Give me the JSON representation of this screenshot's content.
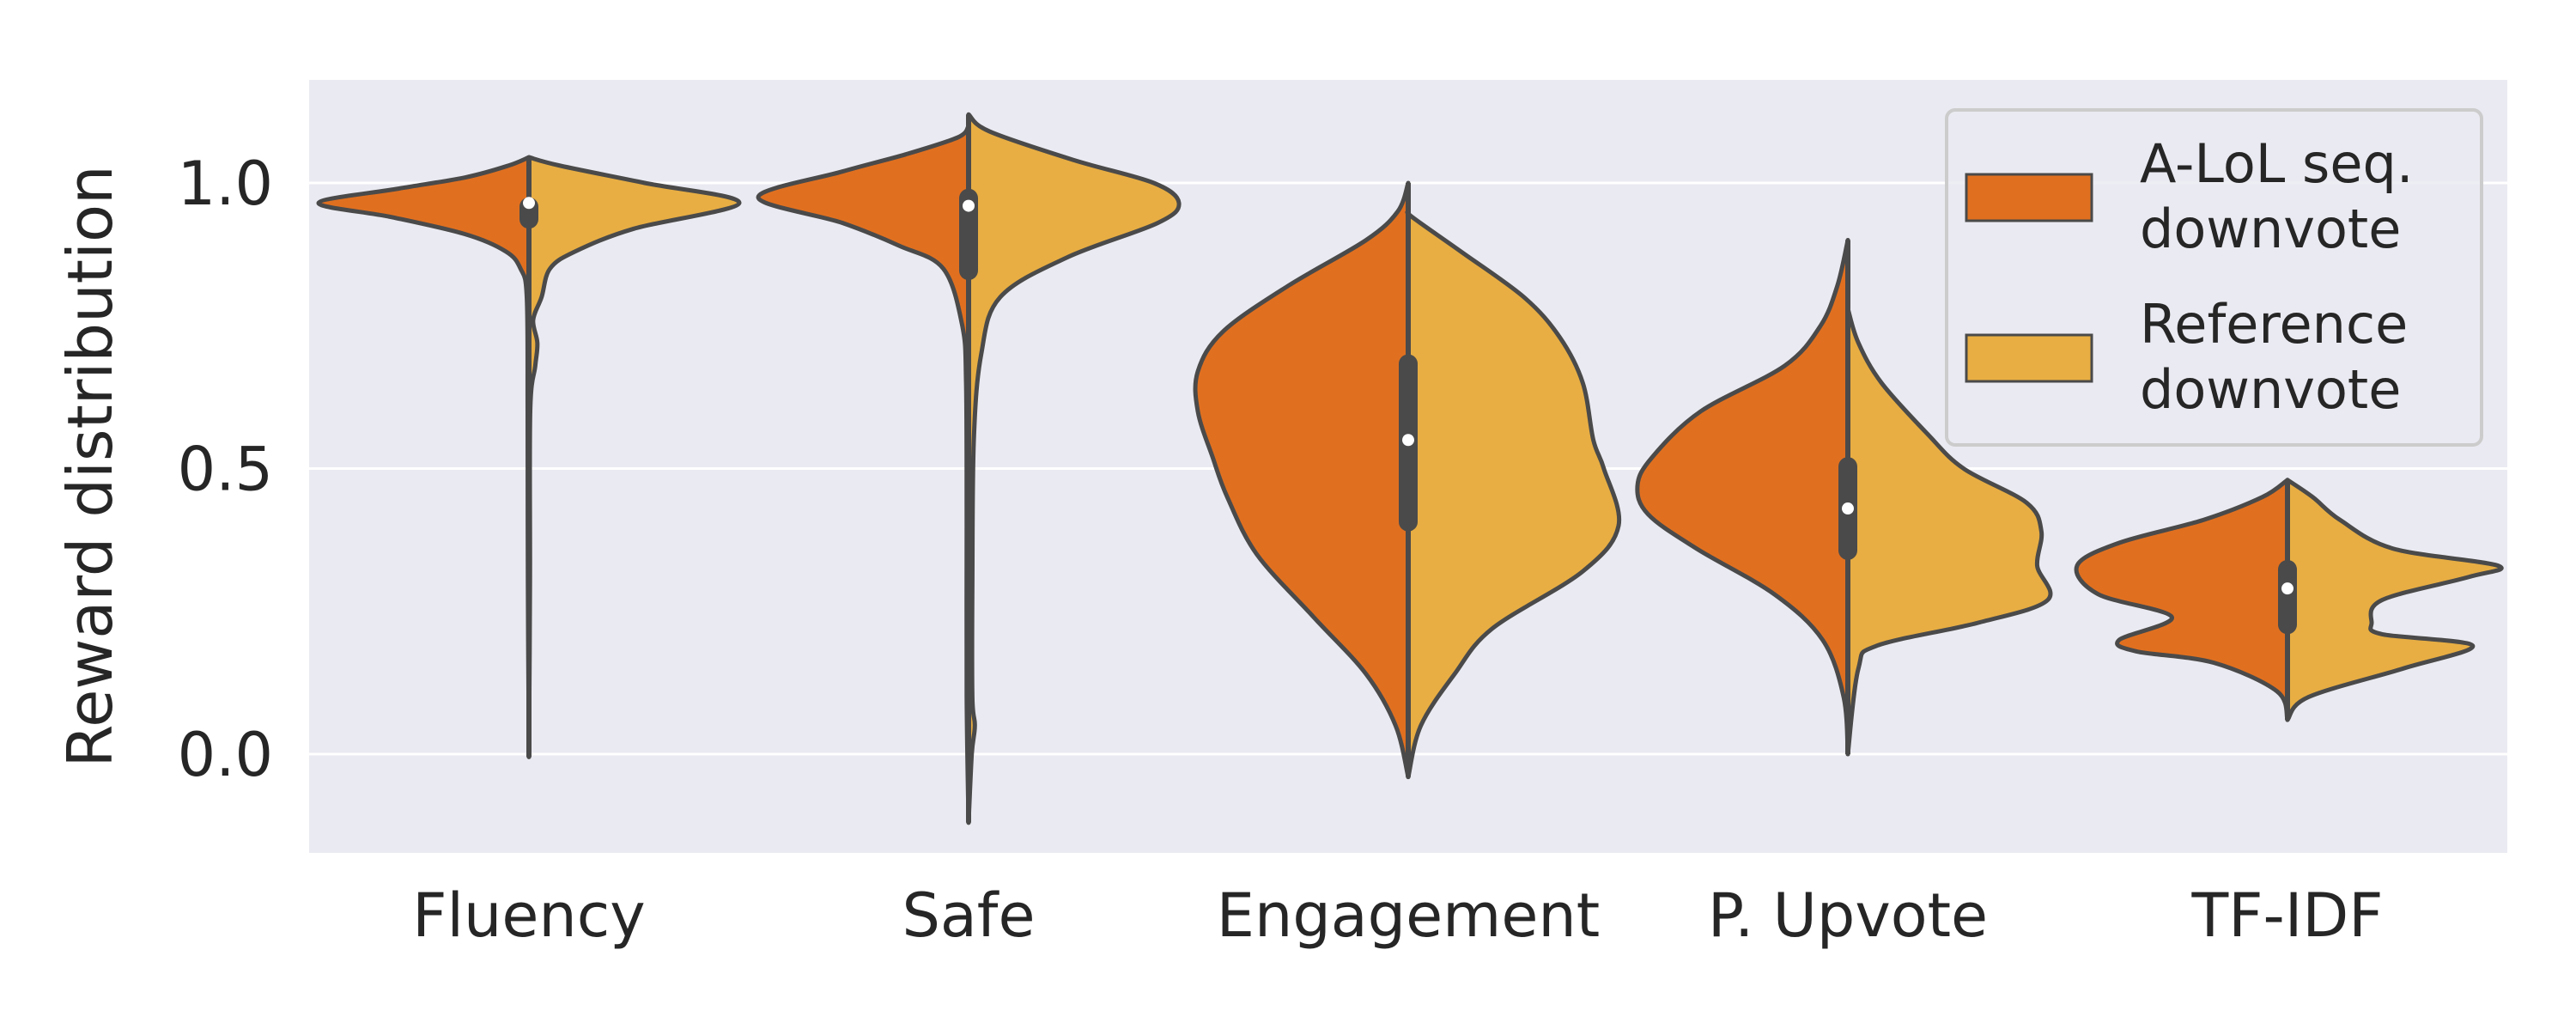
{
  "chart_data": {
    "type": "violin",
    "title": "",
    "xlabel": "",
    "ylabel": "Reward distribution",
    "ylim": [
      -0.17,
      1.18
    ],
    "yticks": [
      0.0,
      0.5,
      1.0
    ],
    "ytick_labels": [
      "0.0",
      "0.5",
      "1.0"
    ],
    "grid": true,
    "legend_position": "top-right",
    "categories": [
      "Fluency",
      "Safe",
      "Engagement",
      "P. Upvote",
      "TF-IDF"
    ],
    "series": [
      {
        "name": "A-LoL seq.\ndownvote",
        "legend_lines": [
          "A-LoL seq.",
          "downvote"
        ],
        "side": "left",
        "color": "#e07020",
        "density": [
          [
            [
              -0.005,
              0.0
            ],
            [
              0.3,
              0.005
            ],
            [
              0.6,
              0.006
            ],
            [
              0.8,
              0.01
            ],
            [
              0.85,
              0.04
            ],
            [
              0.88,
              0.11
            ],
            [
              0.91,
              0.3
            ],
            [
              0.94,
              0.65
            ],
            [
              0.965,
              1.0
            ],
            [
              0.99,
              0.62
            ],
            [
              1.01,
              0.3
            ],
            [
              1.03,
              0.1
            ],
            [
              1.045,
              0.0
            ]
          ],
          [
            [
              -0.12,
              0.0
            ],
            [
              0.1,
              0.009
            ],
            [
              0.4,
              0.009
            ],
            [
              0.65,
              0.012
            ],
            [
              0.75,
              0.03
            ],
            [
              0.85,
              0.12
            ],
            [
              0.89,
              0.33
            ],
            [
              0.93,
              0.6
            ],
            [
              0.975,
              1.0
            ],
            [
              1.02,
              0.6
            ],
            [
              1.05,
              0.3
            ],
            [
              1.08,
              0.05
            ],
            [
              1.1,
              0.0
            ]
          ],
          [
            [
              -0.04,
              0.0
            ],
            [
              0.05,
              0.06
            ],
            [
              0.14,
              0.2
            ],
            [
              0.24,
              0.45
            ],
            [
              0.35,
              0.72
            ],
            [
              0.45,
              0.86
            ],
            [
              0.52,
              0.93
            ],
            [
              0.6,
              1.0
            ],
            [
              0.67,
              1.0
            ],
            [
              0.74,
              0.88
            ],
            [
              0.82,
              0.57
            ],
            [
              0.9,
              0.2
            ],
            [
              0.95,
              0.05
            ],
            [
              1.0,
              0.0
            ]
          ],
          [
            [
              0.0,
              0.0
            ],
            [
              0.1,
              0.02
            ],
            [
              0.2,
              0.12
            ],
            [
              0.28,
              0.35
            ],
            [
              0.36,
              0.72
            ],
            [
              0.42,
              0.95
            ],
            [
              0.47,
              1.0
            ],
            [
              0.52,
              0.93
            ],
            [
              0.6,
              0.7
            ],
            [
              0.68,
              0.3
            ],
            [
              0.75,
              0.13
            ],
            [
              0.82,
              0.05
            ],
            [
              0.9,
              0.0
            ]
          ],
          [
            [
              0.06,
              0.0
            ],
            [
              0.11,
              0.05
            ],
            [
              0.16,
              0.35
            ],
            [
              0.18,
              0.72
            ],
            [
              0.2,
              0.8
            ],
            [
              0.24,
              0.55
            ],
            [
              0.28,
              0.9
            ],
            [
              0.33,
              1.0
            ],
            [
              0.37,
              0.8
            ],
            [
              0.41,
              0.4
            ],
            [
              0.45,
              0.12
            ],
            [
              0.48,
              0.0
            ]
          ]
        ]
      },
      {
        "name": "Reference\ndownvote",
        "legend_lines": [
          "Reference",
          "downvote"
        ],
        "side": "right",
        "color": "#e8ae43",
        "density": [
          [
            [
              -0.005,
              0.0
            ],
            [
              0.3,
              0.005
            ],
            [
              0.6,
              0.006
            ],
            [
              0.68,
              0.03
            ],
            [
              0.72,
              0.04
            ],
            [
              0.76,
              0.02
            ],
            [
              0.8,
              0.06
            ],
            [
              0.85,
              0.1
            ],
            [
              0.88,
              0.22
            ],
            [
              0.92,
              0.5
            ],
            [
              0.965,
              1.0
            ],
            [
              1.0,
              0.55
            ],
            [
              1.03,
              0.15
            ],
            [
              1.045,
              0.0
            ]
          ],
          [
            [
              -0.12,
              0.0
            ],
            [
              0.0,
              0.015
            ],
            [
              0.05,
              0.03
            ],
            [
              0.1,
              0.018
            ],
            [
              0.3,
              0.018
            ],
            [
              0.55,
              0.025
            ],
            [
              0.7,
              0.06
            ],
            [
              0.8,
              0.15
            ],
            [
              0.87,
              0.47
            ],
            [
              0.93,
              0.9
            ],
            [
              0.965,
              1.0
            ],
            [
              1.0,
              0.88
            ],
            [
              1.04,
              0.5
            ],
            [
              1.09,
              0.1
            ],
            [
              1.12,
              0.0
            ]
          ],
          [
            [
              -0.04,
              0.0
            ],
            [
              0.05,
              0.06
            ],
            [
              0.14,
              0.22
            ],
            [
              0.22,
              0.4
            ],
            [
              0.32,
              0.83
            ],
            [
              0.4,
              1.0
            ],
            [
              0.5,
              0.93
            ],
            [
              0.55,
              0.88
            ],
            [
              0.65,
              0.83
            ],
            [
              0.73,
              0.72
            ],
            [
              0.8,
              0.55
            ],
            [
              0.88,
              0.25
            ],
            [
              0.94,
              0.02
            ],
            [
              0.95,
              0.0
            ]
          ],
          [
            [
              0.0,
              0.0
            ],
            [
              0.15,
              0.05
            ],
            [
              0.19,
              0.14
            ],
            [
              0.23,
              0.62
            ],
            [
              0.27,
              0.95
            ],
            [
              0.33,
              0.9
            ],
            [
              0.39,
              0.92
            ],
            [
              0.44,
              0.85
            ],
            [
              0.5,
              0.55
            ],
            [
              0.56,
              0.38
            ],
            [
              0.65,
              0.16
            ],
            [
              0.72,
              0.05
            ],
            [
              0.78,
              0.0
            ]
          ],
          [
            [
              0.06,
              0.0
            ],
            [
              0.1,
              0.1
            ],
            [
              0.15,
              0.55
            ],
            [
              0.19,
              0.88
            ],
            [
              0.21,
              0.45
            ],
            [
              0.23,
              0.4
            ],
            [
              0.27,
              0.45
            ],
            [
              0.31,
              0.86
            ],
            [
              0.33,
              1.0
            ],
            [
              0.36,
              0.5
            ],
            [
              0.41,
              0.25
            ],
            [
              0.45,
              0.12
            ],
            [
              0.48,
              0.0
            ]
          ]
        ]
      }
    ],
    "box_stats": [
      {
        "category": "Fluency",
        "q1": 0.92,
        "median": 0.965,
        "q3": 0.975
      },
      {
        "category": "Safe",
        "q1": 0.83,
        "median": 0.96,
        "q3": 0.99
      },
      {
        "category": "Engagement",
        "q1": 0.39,
        "median": 0.55,
        "q3": 0.7
      },
      {
        "category": "P. Upvote",
        "q1": 0.34,
        "median": 0.43,
        "q3": 0.52
      },
      {
        "category": "TF-IDF",
        "q1": 0.21,
        "median": 0.29,
        "q3": 0.34
      }
    ]
  }
}
